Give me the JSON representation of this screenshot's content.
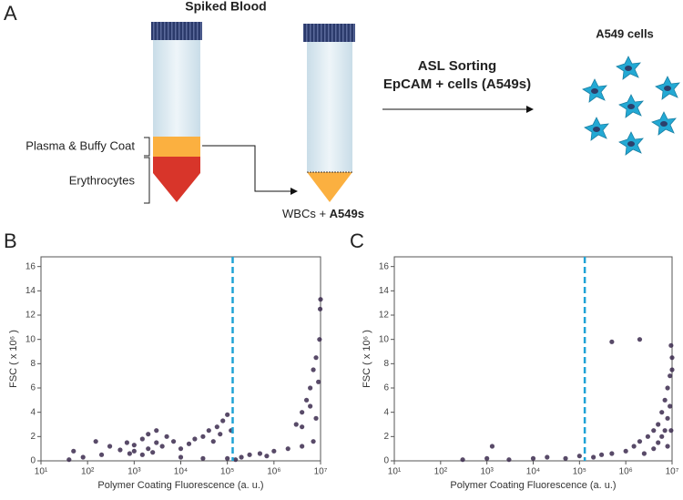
{
  "panel_a": {
    "label": "A",
    "title": "Spiked Blood",
    "layer_1": "Plasma & Buffy Coat",
    "layer_2": "Erythrocytes",
    "result_prefix": "WBCs + ",
    "result_bold": "A549s",
    "step_1": "ASL Sorting",
    "step_2": "EpCAM + cells (A549s)",
    "output": "A549 cells"
  },
  "chart_data": [
    {
      "type": "scatter",
      "panel_label": "B",
      "x_label": "Polymer Coating Fluorescence (a. u.)",
      "y_label": "FSC ( x 10⁶ )",
      "log_x": true,
      "color": "#3b2a4e",
      "threshold": 130000,
      "threshold_color": "#1fa3d6",
      "xlim": [
        10,
        10000000
      ],
      "ylim": [
        0,
        16.8
      ],
      "xticks": [
        {
          "value": 10,
          "label": "10¹"
        },
        {
          "value": 100,
          "label": "10²"
        },
        {
          "value": 1000,
          "label": "10³"
        },
        {
          "value": 10000,
          "label": "10⁴"
        },
        {
          "value": 100000,
          "label": "10⁵"
        },
        {
          "value": 1000000,
          "label": "10⁶"
        },
        {
          "value": 10000000,
          "label": "10⁷"
        }
      ],
      "yticks": [
        0,
        2,
        4,
        6,
        8,
        10,
        12,
        14,
        16
      ],
      "x": [
        300,
        500,
        700,
        1000,
        1000,
        1500,
        2000,
        2000,
        3000,
        3000,
        4000,
        5000,
        7000,
        800,
        1500,
        2500,
        10000,
        15000,
        20000,
        30000,
        40000,
        60000,
        80000,
        100000,
        50000,
        70000,
        120000,
        10000,
        30000,
        100000,
        200000,
        300000,
        500000,
        1000000,
        2000000,
        4000000,
        7000000,
        150000,
        700000,
        3000000,
        4000000,
        5000000,
        6000000,
        7000000,
        8000000,
        9000000,
        4000000,
        6000000,
        9500000,
        9800000,
        10000000,
        8000000,
        50,
        80,
        200,
        150,
        40
      ],
      "values": [
        1.2,
        0.9,
        1.5,
        1.3,
        0.8,
        1.8,
        1.0,
        2.2,
        1.5,
        2.5,
        1.2,
        2.0,
        1.6,
        0.6,
        0.5,
        0.7,
        1.0,
        1.4,
        1.8,
        2.0,
        2.5,
        2.8,
        3.3,
        3.8,
        1.6,
        2.2,
        2.5,
        0.3,
        0.2,
        0.2,
        0.3,
        0.5,
        0.6,
        0.8,
        1.0,
        1.2,
        1.6,
        0.1,
        0.4,
        3.0,
        4.0,
        5.0,
        6.0,
        7.5,
        8.5,
        6.5,
        2.8,
        4.5,
        10,
        12.5,
        13.3,
        3.5,
        0.8,
        0.3,
        0.5,
        1.6,
        0.1
      ]
    },
    {
      "type": "scatter",
      "panel_label": "C",
      "x_label": "Polymer Coating Fluorescence (a. u.)",
      "y_label": "FSC ( x 10⁶ )",
      "log_x": true,
      "color": "#3b2a4e",
      "threshold": 130000,
      "threshold_color": "#1fa3d6",
      "xlim": [
        10,
        10000000
      ],
      "ylim": [
        0,
        16.8
      ],
      "xticks": [
        {
          "value": 10,
          "label": "10¹"
        },
        {
          "value": 100,
          "label": "10²"
        },
        {
          "value": 1000,
          "label": "10³"
        },
        {
          "value": 10000,
          "label": "10⁴"
        },
        {
          "value": 100000,
          "label": "10⁵"
        },
        {
          "value": 1000000,
          "label": "10⁶"
        },
        {
          "value": 10000000,
          "label": "10⁷"
        }
      ],
      "yticks": [
        0,
        2,
        4,
        6,
        8,
        10,
        12,
        14,
        16
      ],
      "x": [
        300,
        1000,
        1300,
        3000,
        10000,
        20000,
        50000,
        100000,
        200000,
        300000,
        500000,
        500000,
        1000000,
        1500000,
        2000000,
        2000000,
        3000000,
        4000000,
        5000000,
        6000000,
        7000000,
        8000000,
        9000000,
        10000000,
        9500000,
        10000000,
        7000000,
        8000000,
        9000000,
        4000000,
        5000000,
        6000000,
        2500000,
        8000000,
        9500000
      ],
      "values": [
        0.1,
        0.2,
        1.2,
        0.1,
        0.2,
        0.3,
        0.2,
        0.4,
        0.3,
        0.5,
        0.6,
        9.8,
        0.8,
        1.2,
        10,
        1.6,
        2.0,
        2.5,
        3.0,
        4.0,
        5.0,
        6.0,
        7.0,
        7.5,
        9.5,
        8.5,
        2.5,
        3.5,
        4.5,
        1.0,
        1.5,
        2.0,
        0.6,
        1.2,
        2.5
      ]
    }
  ]
}
